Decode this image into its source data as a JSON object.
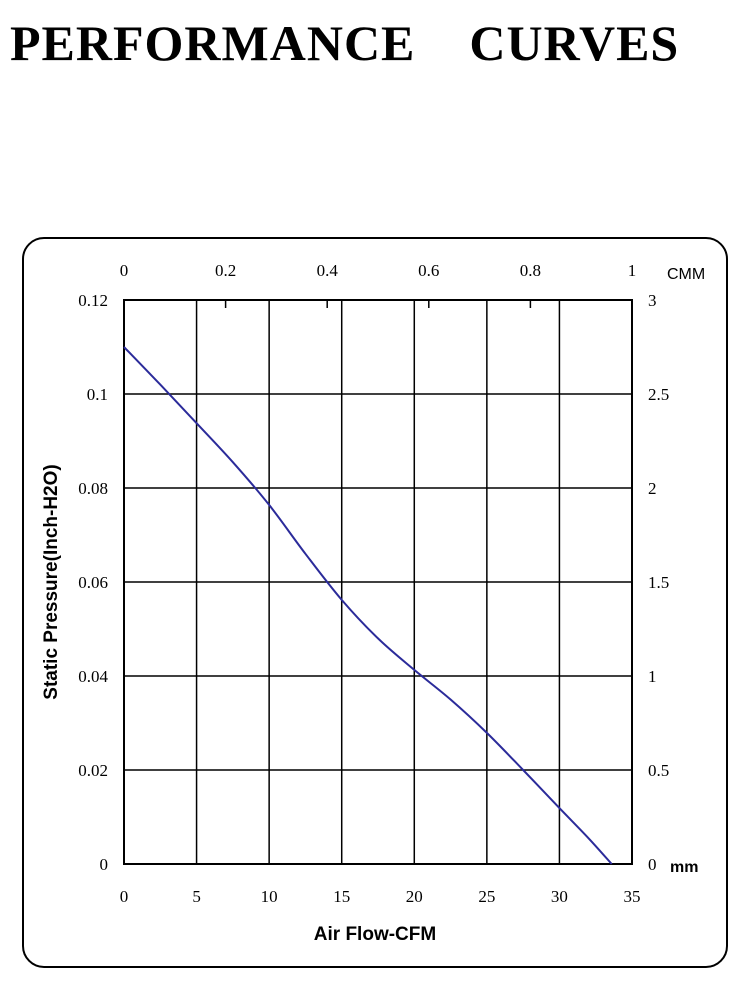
{
  "title": "PERFORMANCE    CURVES",
  "chart_data": {
    "type": "line",
    "title": "PERFORMANCE CURVES",
    "xlabel": "Air Flow-CFM",
    "ylabel": "Static Pressure(Inch-H2O)",
    "x2label": "CMM",
    "y2label": "mm",
    "xlim": [
      0,
      35
    ],
    "ylim": [
      0,
      0.12
    ],
    "x2lim": [
      0,
      1
    ],
    "y2lim": [
      0,
      3
    ],
    "grid": true,
    "x_ticks": [
      "0",
      "5",
      "10",
      "15",
      "20",
      "25",
      "30",
      "35"
    ],
    "y_ticks": [
      "0",
      "0.02",
      "0.04",
      "0.06",
      "0.08",
      "0.1",
      "0.12"
    ],
    "x2_ticks": [
      "0",
      "0.2",
      "0.4",
      "0.6",
      "0.8",
      "1"
    ],
    "y2_ticks": [
      "0",
      "0.5",
      "1",
      "1.5",
      "2",
      "2.5",
      "3"
    ],
    "line_color": "#2b2b9a",
    "series": [
      {
        "name": "Static Pressure",
        "x": [
          0,
          2.5,
          5,
          7.5,
          10,
          12.5,
          15,
          17.5,
          20,
          22.5,
          25,
          27.5,
          30,
          32,
          33.6
        ],
        "y": [
          0.11,
          0.102,
          0.0938,
          0.0855,
          0.0764,
          0.066,
          0.0562,
          0.048,
          0.0413,
          0.035,
          0.0279,
          0.02,
          0.0119,
          0.0055,
          0.0
        ]
      }
    ]
  }
}
